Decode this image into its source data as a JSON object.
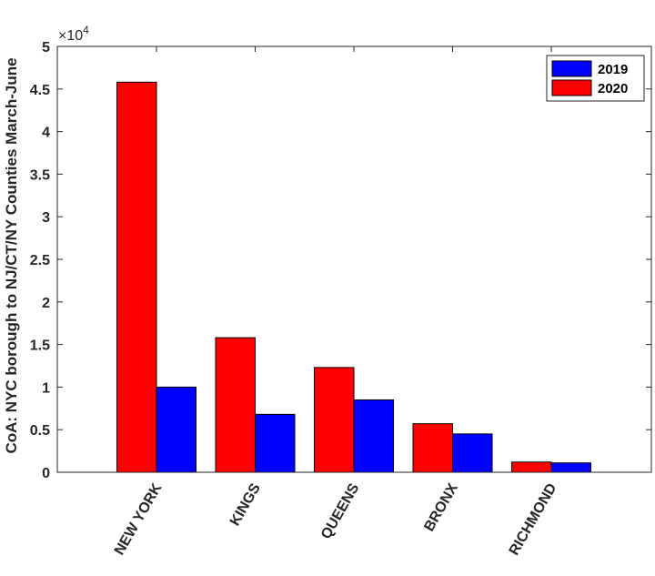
{
  "chart_data": {
    "type": "bar",
    "categories": [
      "NEW YORK",
      "KINGS",
      "QUEENS",
      "BRONX",
      "RICHMOND"
    ],
    "series": [
      {
        "name": "2020",
        "color": "#ff0000",
        "values": [
          45800,
          15800,
          12300,
          5700,
          1200
        ]
      },
      {
        "name": "2019",
        "color": "#0000ff",
        "values": [
          10000,
          6800,
          8500,
          4500,
          1100
        ]
      }
    ],
    "legend_order": [
      "2019",
      "2020"
    ],
    "legend_position": "top-right",
    "title": "",
    "xlabel": "",
    "ylabel": "CoA: NYC borough to NJ/CT/NY Counties March-June",
    "ylim": [
      0,
      50000
    ],
    "yticks": [
      0,
      5000,
      10000,
      15000,
      20000,
      25000,
      30000,
      35000,
      40000,
      45000,
      50000
    ],
    "ytick_labels": [
      "0",
      "0.5",
      "1",
      "1.5",
      "2",
      "2.5",
      "3",
      "3.5",
      "4",
      "4.5",
      "5"
    ],
    "exponent_label": "×10",
    "exponent_power": "4",
    "grid": false
  }
}
